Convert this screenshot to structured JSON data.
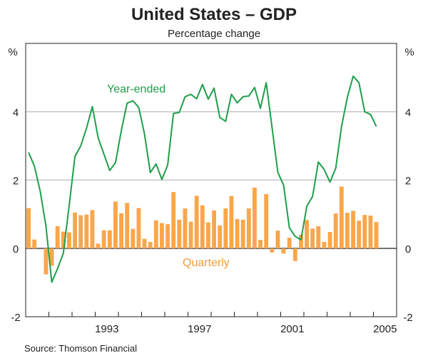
{
  "chart_data": {
    "type": "bar+line",
    "title": "United States – GDP",
    "subtitle": "Percentage change",
    "ylabel_left": "%",
    "ylabel_right": "%",
    "ylim": [
      -2,
      6
    ],
    "yticks": [
      -2,
      0,
      2,
      4
    ],
    "xlim": [
      1990,
      2006
    ],
    "xtick_labels": [
      "1993",
      "1997",
      "2001",
      "2005"
    ],
    "grid": true,
    "x_start": "1990Q1",
    "x_end": "2005Q1",
    "frequency": "quarterly",
    "series": [
      {
        "name": "Year-ended",
        "type": "line",
        "color": "#1f9e4a",
        "values": [
          2.81,
          2.41,
          1.68,
          0.65,
          -0.99,
          -0.59,
          -0.14,
          1.25,
          2.69,
          3.0,
          3.52,
          4.15,
          3.24,
          2.76,
          2.28,
          2.51,
          3.45,
          4.25,
          4.32,
          4.13,
          3.35,
          2.22,
          2.47,
          2.02,
          2.44,
          3.95,
          3.98,
          4.44,
          4.51,
          4.38,
          4.8,
          4.37,
          4.69,
          3.83,
          3.72,
          4.51,
          4.26,
          4.44,
          4.46,
          4.71,
          4.1,
          4.85,
          3.55,
          2.23,
          1.85,
          0.6,
          0.35,
          0.25,
          1.23,
          1.52,
          2.53,
          2.31,
          1.94,
          2.35,
          3.57,
          4.42,
          5.04,
          4.85,
          4.0,
          3.92,
          3.57
        ]
      },
      {
        "name": "Quarterly",
        "type": "bar",
        "color": "#f9a64a",
        "values": [
          1.18,
          0.26,
          0.0,
          -0.76,
          -0.51,
          0.65,
          0.49,
          0.47,
          1.05,
          0.97,
          0.99,
          1.12,
          0.14,
          0.53,
          0.53,
          1.37,
          1.03,
          1.33,
          0.57,
          1.18,
          0.28,
          0.19,
          0.82,
          0.74,
          0.71,
          1.65,
          0.84,
          1.17,
          0.78,
          1.54,
          1.26,
          0.76,
          1.11,
          0.67,
          1.17,
          1.53,
          0.86,
          0.84,
          1.17,
          1.78,
          0.25,
          1.59,
          -0.12,
          0.52,
          -0.15,
          0.31,
          -0.37,
          0.4,
          0.83,
          0.58,
          0.65,
          0.19,
          0.48,
          1.02,
          1.81,
          1.04,
          1.1,
          0.81,
          0.98,
          0.96,
          0.77
        ]
      }
    ],
    "annotations": [
      "Year-ended",
      "Quarterly"
    ],
    "source": "Source: Thomson Financial"
  }
}
